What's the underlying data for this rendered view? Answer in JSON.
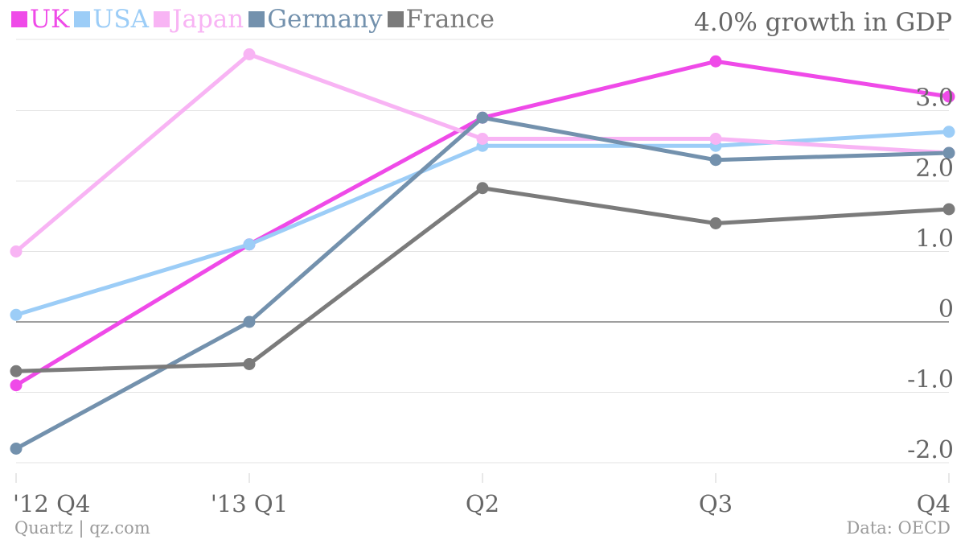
{
  "chart_data": {
    "type": "line",
    "categories": [
      "'12 Q4",
      "'13 Q1",
      "Q2",
      "Q3",
      "Q4"
    ],
    "yticks": [
      {
        "value": 3.0,
        "label": "3.0"
      },
      {
        "value": 2.0,
        "label": "2.0"
      },
      {
        "value": 1.0,
        "label": "1.0"
      },
      {
        "value": 0,
        "label": "0"
      },
      {
        "value": -1.0,
        "label": "-1.0"
      },
      {
        "value": -2.0,
        "label": "-2.0"
      }
    ],
    "ytitle": "4.0% growth in GDP",
    "ylim": [
      -2.0,
      4.0
    ],
    "grid": true,
    "legend_position": "top-left",
    "series": [
      {
        "name": "UK",
        "color": "#ef4ae8",
        "values": [
          -0.9,
          1.1,
          2.9,
          3.7,
          3.2
        ]
      },
      {
        "name": "USA",
        "color": "#9ccdf7",
        "values": [
          0.1,
          1.1,
          2.5,
          2.5,
          2.7
        ]
      },
      {
        "name": "Japan",
        "color": "#f8b4f4",
        "values": [
          1.0,
          3.8,
          2.6,
          2.6,
          2.4
        ]
      },
      {
        "name": "Germany",
        "color": "#7391ad",
        "values": [
          -1.8,
          0.0,
          2.9,
          2.3,
          2.4
        ]
      },
      {
        "name": "France",
        "color": "#7b7b7b",
        "values": [
          -0.7,
          -0.6,
          1.9,
          1.4,
          1.6
        ]
      }
    ]
  },
  "footer": {
    "source_left": "Quartz | qz.com",
    "source_right": "Data: OECD"
  }
}
